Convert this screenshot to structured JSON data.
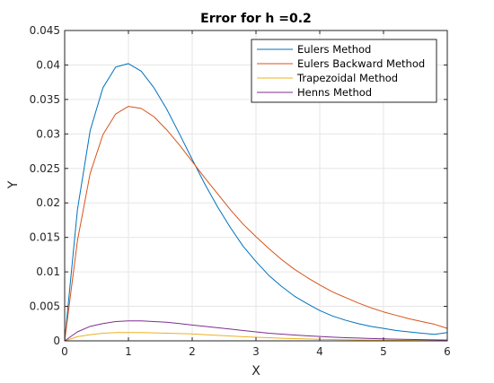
{
  "chart_data": {
    "type": "line",
    "title": "Error for h =0.2",
    "xlabel": "X",
    "ylabel": "Y",
    "xlim": [
      0,
      6
    ],
    "ylim": [
      0,
      0.045
    ],
    "x_ticks": [
      "0",
      "1",
      "2",
      "3",
      "4",
      "5",
      "6"
    ],
    "y_ticks": [
      "0",
      "0.005",
      "0.01",
      "0.015",
      "0.02",
      "0.025",
      "0.03",
      "0.035",
      "0.04",
      "0.045"
    ],
    "grid": true,
    "legend_position": "top-right",
    "x": [
      0,
      0.2,
      0.4,
      0.6,
      0.8,
      1.0,
      1.2,
      1.4,
      1.6,
      1.8,
      2.0,
      2.2,
      2.4,
      2.6,
      2.8,
      3.0,
      3.2,
      3.4,
      3.6,
      3.8,
      4.0,
      4.2,
      4.4,
      4.6,
      4.8,
      5.0,
      5.2,
      5.4,
      5.6,
      5.8,
      6.0
    ],
    "series": [
      {
        "name": "Eulers Method",
        "color": "#0072BD",
        "values": [
          0,
          0.019,
          0.0305,
          0.0367,
          0.0397,
          0.0402,
          0.0391,
          0.0367,
          0.0336,
          0.03,
          0.0263,
          0.0227,
          0.0194,
          0.0164,
          0.0137,
          0.0115,
          0.0095,
          0.0079,
          0.0065,
          0.0054,
          0.0044,
          0.0036,
          0.003,
          0.0025,
          0.0021,
          0.0018,
          0.0015,
          0.0013,
          0.0011,
          0.00095,
          0.0012
        ]
      },
      {
        "name": "Eulers Backward Method",
        "color": "#D95319",
        "values": [
          0,
          0.0145,
          0.0243,
          0.0299,
          0.0329,
          0.034,
          0.0337,
          0.0325,
          0.0306,
          0.0284,
          0.026,
          0.0236,
          0.0213,
          0.019,
          0.0169,
          0.0151,
          0.0134,
          0.0118,
          0.0104,
          0.0092,
          0.0081,
          0.0071,
          0.0063,
          0.0055,
          0.0048,
          0.0042,
          0.0037,
          0.0032,
          0.0028,
          0.0024,
          0.0018
        ]
      },
      {
        "name": "Trapezoidal Method",
        "color": "#EDB120",
        "values": [
          0,
          0.0006,
          0.0009,
          0.0011,
          0.0012,
          0.0012,
          0.0012,
          0.00115,
          0.0011,
          0.00105,
          0.001,
          0.0009,
          0.0008,
          0.0007,
          0.0006,
          0.00052,
          0.00045,
          0.00038,
          0.00032,
          0.00027,
          0.00023,
          0.00019,
          0.00016,
          0.00013,
          0.00011,
          9e-05,
          7e-05,
          6e-05,
          5e-05,
          4e-05,
          3e-05
        ]
      },
      {
        "name": "Henns Method",
        "color": "#7E2F8E",
        "values": [
          0,
          0.0013,
          0.0021,
          0.0025,
          0.0028,
          0.0029,
          0.0029,
          0.0028,
          0.0027,
          0.0025,
          0.0023,
          0.0021,
          0.0019,
          0.0017,
          0.0015,
          0.0013,
          0.0011,
          0.00097,
          0.00084,
          0.00073,
          0.00063,
          0.00054,
          0.00046,
          0.0004,
          0.00034,
          0.00029,
          0.00025,
          0.00021,
          0.00018,
          0.00015,
          0.00012
        ]
      }
    ]
  }
}
